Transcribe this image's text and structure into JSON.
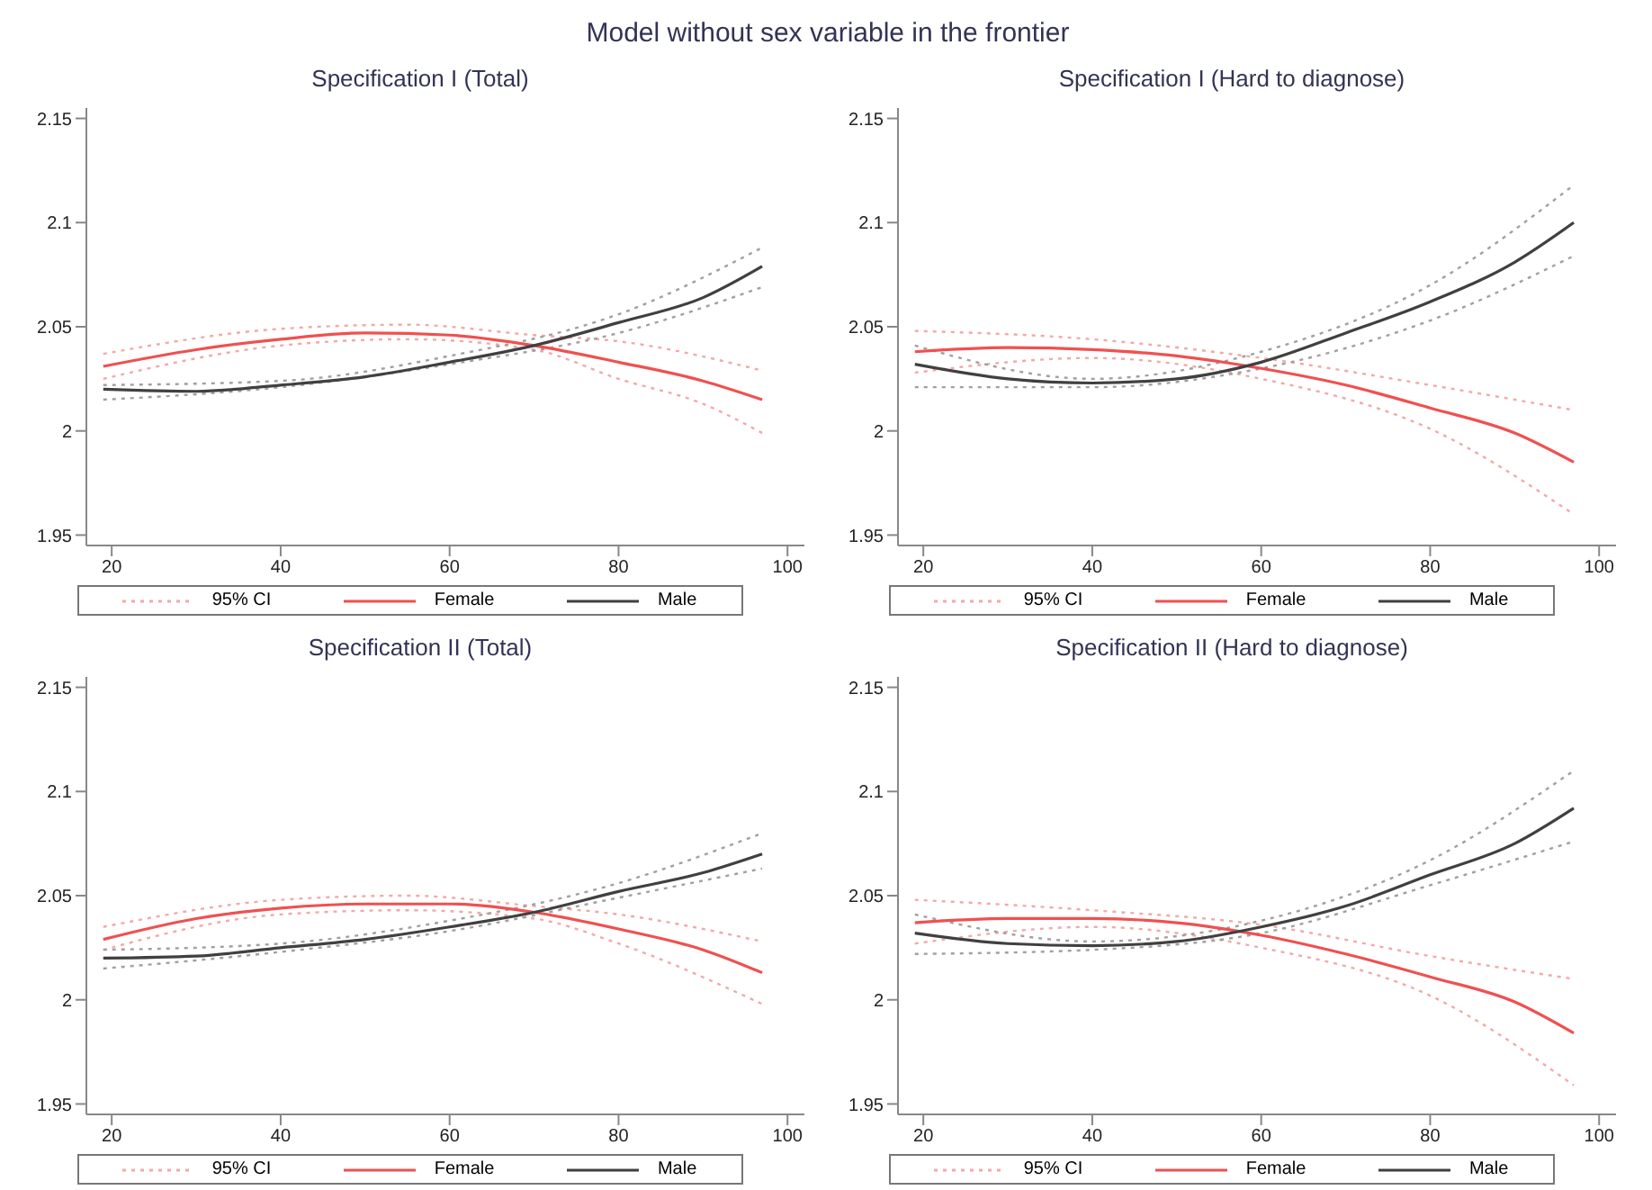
{
  "chart_data": [
    {
      "type": "line",
      "title": "Specification I (Total)",
      "annotations": [
        "Model without sex variable in the frontier"
      ],
      "xlim": [
        17,
        102
      ],
      "xticks": [
        20,
        40,
        60,
        80,
        100
      ],
      "ylim": [
        1.945,
        2.155
      ],
      "yticks": [
        1.95,
        2,
        2.05,
        2.1,
        2.15
      ],
      "grid": false,
      "legend": "bottom",
      "marker": "none",
      "series": [
        {
          "name": "95% CI",
          "color": "#f4a8a8",
          "line_style": "dotted",
          "x": [
            19,
            40,
            55,
            70,
            80,
            97
          ],
          "values": [
            2.037,
            2.049,
            2.051,
            2.046,
            2.043,
            2.029
          ]
        },
        {
          "color": "#f4a8a8",
          "line_style": "dotted",
          "x": [
            19,
            40,
            55,
            70,
            80,
            90,
            97
          ],
          "values": [
            2.025,
            2.041,
            2.044,
            2.039,
            2.025,
            2.013,
            1.999
          ]
        },
        {
          "color": "#a0a0a0",
          "line_style": "dotted",
          "x": [
            19,
            40,
            60,
            80,
            97
          ],
          "values": [
            2.022,
            2.024,
            2.036,
            2.056,
            2.088
          ]
        },
        {
          "color": "#a0a0a0",
          "line_style": "dotted",
          "x": [
            19,
            40,
            60,
            80,
            97
          ],
          "values": [
            2.015,
            2.021,
            2.032,
            2.047,
            2.069
          ]
        },
        {
          "name": "Female",
          "color": "#f05050",
          "line_style": "solid",
          "x": [
            19,
            30,
            40,
            50,
            60,
            70,
            80,
            90,
            97
          ],
          "values": [
            2.031,
            2.039,
            2.044,
            2.047,
            2.046,
            2.041,
            2.033,
            2.024,
            2.015
          ]
        },
        {
          "name": "Male",
          "color": "#404040",
          "line_style": "solid",
          "x": [
            19,
            30,
            40,
            50,
            60,
            70,
            80,
            90,
            97
          ],
          "values": [
            2.02,
            2.019,
            2.022,
            2.026,
            2.033,
            2.041,
            2.052,
            2.064,
            2.079
          ]
        }
      ]
    },
    {
      "type": "line",
      "title": "Specification I (Hard to diagnose)",
      "xlim": [
        17,
        102
      ],
      "xticks": [
        20,
        40,
        60,
        80,
        100
      ],
      "ylim": [
        1.945,
        2.155
      ],
      "yticks": [
        1.95,
        2,
        2.05,
        2.1,
        2.15
      ],
      "grid": false,
      "legend": "bottom",
      "marker": "none",
      "series": [
        {
          "name": "95% CI",
          "color": "#f4a8a8",
          "line_style": "dotted",
          "x": [
            19,
            40,
            60,
            80,
            97
          ],
          "values": [
            2.048,
            2.044,
            2.035,
            2.022,
            2.01
          ]
        },
        {
          "color": "#f4a8a8",
          "line_style": "dotted",
          "x": [
            19,
            40,
            60,
            80,
            97
          ],
          "values": [
            2.028,
            2.035,
            2.025,
            2.001,
            1.96
          ]
        },
        {
          "color": "#a0a0a0",
          "line_style": "dotted",
          "x": [
            19,
            40,
            60,
            80,
            97
          ],
          "values": [
            2.041,
            2.025,
            2.038,
            2.07,
            2.118
          ]
        },
        {
          "color": "#a0a0a0",
          "line_style": "dotted",
          "x": [
            19,
            40,
            60,
            80,
            97
          ],
          "values": [
            2.021,
            2.021,
            2.03,
            2.053,
            2.084
          ]
        },
        {
          "name": "Female",
          "color": "#f05050",
          "line_style": "solid",
          "x": [
            19,
            30,
            40,
            50,
            60,
            70,
            80,
            90,
            97
          ],
          "values": [
            2.038,
            2.04,
            2.039,
            2.036,
            2.03,
            2.022,
            2.011,
            1.999,
            1.985
          ]
        },
        {
          "name": "Male",
          "color": "#404040",
          "line_style": "solid",
          "x": [
            19,
            30,
            40,
            50,
            60,
            70,
            80,
            90,
            97
          ],
          "values": [
            2.032,
            2.025,
            2.023,
            2.025,
            2.033,
            2.047,
            2.062,
            2.081,
            2.1
          ]
        }
      ]
    },
    {
      "type": "line",
      "title": "Specification II (Total)",
      "xlim": [
        17,
        102
      ],
      "xticks": [
        20,
        40,
        60,
        80,
        100
      ],
      "ylim": [
        1.945,
        2.155
      ],
      "yticks": [
        1.95,
        2,
        2.05,
        2.1,
        2.15
      ],
      "grid": false,
      "legend": "bottom",
      "marker": "none",
      "series": [
        {
          "name": "95% CI",
          "color": "#f4a8a8",
          "line_style": "dotted",
          "x": [
            19,
            40,
            55,
            70,
            80,
            97
          ],
          "values": [
            2.035,
            2.048,
            2.05,
            2.045,
            2.041,
            2.028
          ]
        },
        {
          "color": "#f4a8a8",
          "line_style": "dotted",
          "x": [
            19,
            40,
            55,
            70,
            80,
            97
          ],
          "values": [
            2.024,
            2.041,
            2.043,
            2.039,
            2.027,
            1.998
          ]
        },
        {
          "color": "#a0a0a0",
          "line_style": "dotted",
          "x": [
            19,
            40,
            60,
            80,
            97
          ],
          "values": [
            2.024,
            2.027,
            2.038,
            2.056,
            2.08
          ]
        },
        {
          "color": "#a0a0a0",
          "line_style": "dotted",
          "x": [
            19,
            40,
            60,
            80,
            97
          ],
          "values": [
            2.015,
            2.023,
            2.033,
            2.049,
            2.063
          ]
        },
        {
          "name": "Female",
          "color": "#f05050",
          "line_style": "solid",
          "x": [
            19,
            30,
            40,
            50,
            60,
            70,
            80,
            90,
            97
          ],
          "values": [
            2.029,
            2.039,
            2.044,
            2.046,
            2.046,
            2.042,
            2.034,
            2.024,
            2.013
          ]
        },
        {
          "name": "Male",
          "color": "#404040",
          "line_style": "solid",
          "x": [
            19,
            30,
            40,
            50,
            60,
            70,
            80,
            90,
            97
          ],
          "values": [
            2.02,
            2.021,
            2.025,
            2.029,
            2.035,
            2.042,
            2.052,
            2.061,
            2.07
          ]
        }
      ]
    },
    {
      "type": "line",
      "title": "Specification II (Hard to diagnose)",
      "xlim": [
        17,
        102
      ],
      "xticks": [
        20,
        40,
        60,
        80,
        100
      ],
      "ylim": [
        1.945,
        2.155
      ],
      "yticks": [
        1.95,
        2,
        2.05,
        2.1,
        2.15
      ],
      "grid": false,
      "legend": "bottom",
      "marker": "none",
      "series": [
        {
          "name": "95% CI",
          "color": "#f4a8a8",
          "line_style": "dotted",
          "x": [
            19,
            40,
            60,
            80,
            97
          ],
          "values": [
            2.048,
            2.043,
            2.036,
            2.021,
            2.01
          ]
        },
        {
          "color": "#f4a8a8",
          "line_style": "dotted",
          "x": [
            19,
            40,
            60,
            80,
            97
          ],
          "values": [
            2.027,
            2.035,
            2.025,
            2.002,
            1.959
          ]
        },
        {
          "color": "#a0a0a0",
          "line_style": "dotted",
          "x": [
            19,
            40,
            60,
            80,
            97
          ],
          "values": [
            2.041,
            2.028,
            2.038,
            2.067,
            2.11
          ]
        },
        {
          "color": "#a0a0a0",
          "line_style": "dotted",
          "x": [
            19,
            40,
            60,
            80,
            97
          ],
          "values": [
            2.022,
            2.024,
            2.032,
            2.055,
            2.076
          ]
        },
        {
          "name": "Female",
          "color": "#f05050",
          "line_style": "solid",
          "x": [
            19,
            30,
            40,
            50,
            60,
            70,
            80,
            90,
            97
          ],
          "values": [
            2.037,
            2.039,
            2.039,
            2.037,
            2.031,
            2.022,
            2.011,
            1.999,
            1.984
          ]
        },
        {
          "name": "Male",
          "color": "#404040",
          "line_style": "solid",
          "x": [
            19,
            30,
            40,
            50,
            60,
            70,
            80,
            90,
            97
          ],
          "values": [
            2.032,
            2.027,
            2.026,
            2.028,
            2.035,
            2.045,
            2.06,
            2.075,
            2.092
          ]
        }
      ]
    }
  ]
}
